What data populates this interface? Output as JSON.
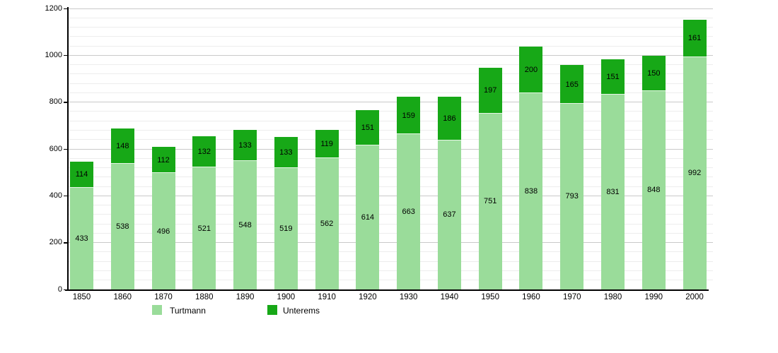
{
  "chart_data": {
    "type": "bar",
    "stacked": true,
    "title": "",
    "xlabel": "",
    "ylabel": "",
    "categories": [
      "1850",
      "1860",
      "1870",
      "1880",
      "1890",
      "1900",
      "1910",
      "1920",
      "1930",
      "1940",
      "1950",
      "1960",
      "1970",
      "1980",
      "1990",
      "2000"
    ],
    "series": [
      {
        "name": "Turtmann",
        "color": "#9adc9a",
        "values": [
          433,
          538,
          496,
          521,
          548,
          519,
          562,
          614,
          663,
          637,
          751,
          838,
          793,
          831,
          848,
          992
        ]
      },
      {
        "name": "Unterems",
        "color": "#17a817",
        "values": [
          114,
          148,
          112,
          132,
          133,
          133,
          119,
          151,
          159,
          186,
          197,
          200,
          165,
          151,
          150,
          161
        ]
      }
    ],
    "totals": [
      547,
      686,
      608,
      653,
      681,
      652,
      681,
      765,
      822,
      823,
      948,
      1038,
      958,
      982,
      998,
      1153
    ],
    "ylim": [
      0,
      1200
    ],
    "ytick_interval": 200,
    "ytick_labels": [
      "0",
      "200",
      "400",
      "600",
      "800",
      "1000",
      "1200"
    ],
    "minor_grid_interval": 40,
    "grid": true,
    "bar_value_labels": true,
    "legend_position": "bottom"
  },
  "colors": {
    "axis": "#000000",
    "major_grid": "#c9c9c9",
    "minor_grid": "#ededed",
    "text": "#000000",
    "background": "#ffffff"
  }
}
